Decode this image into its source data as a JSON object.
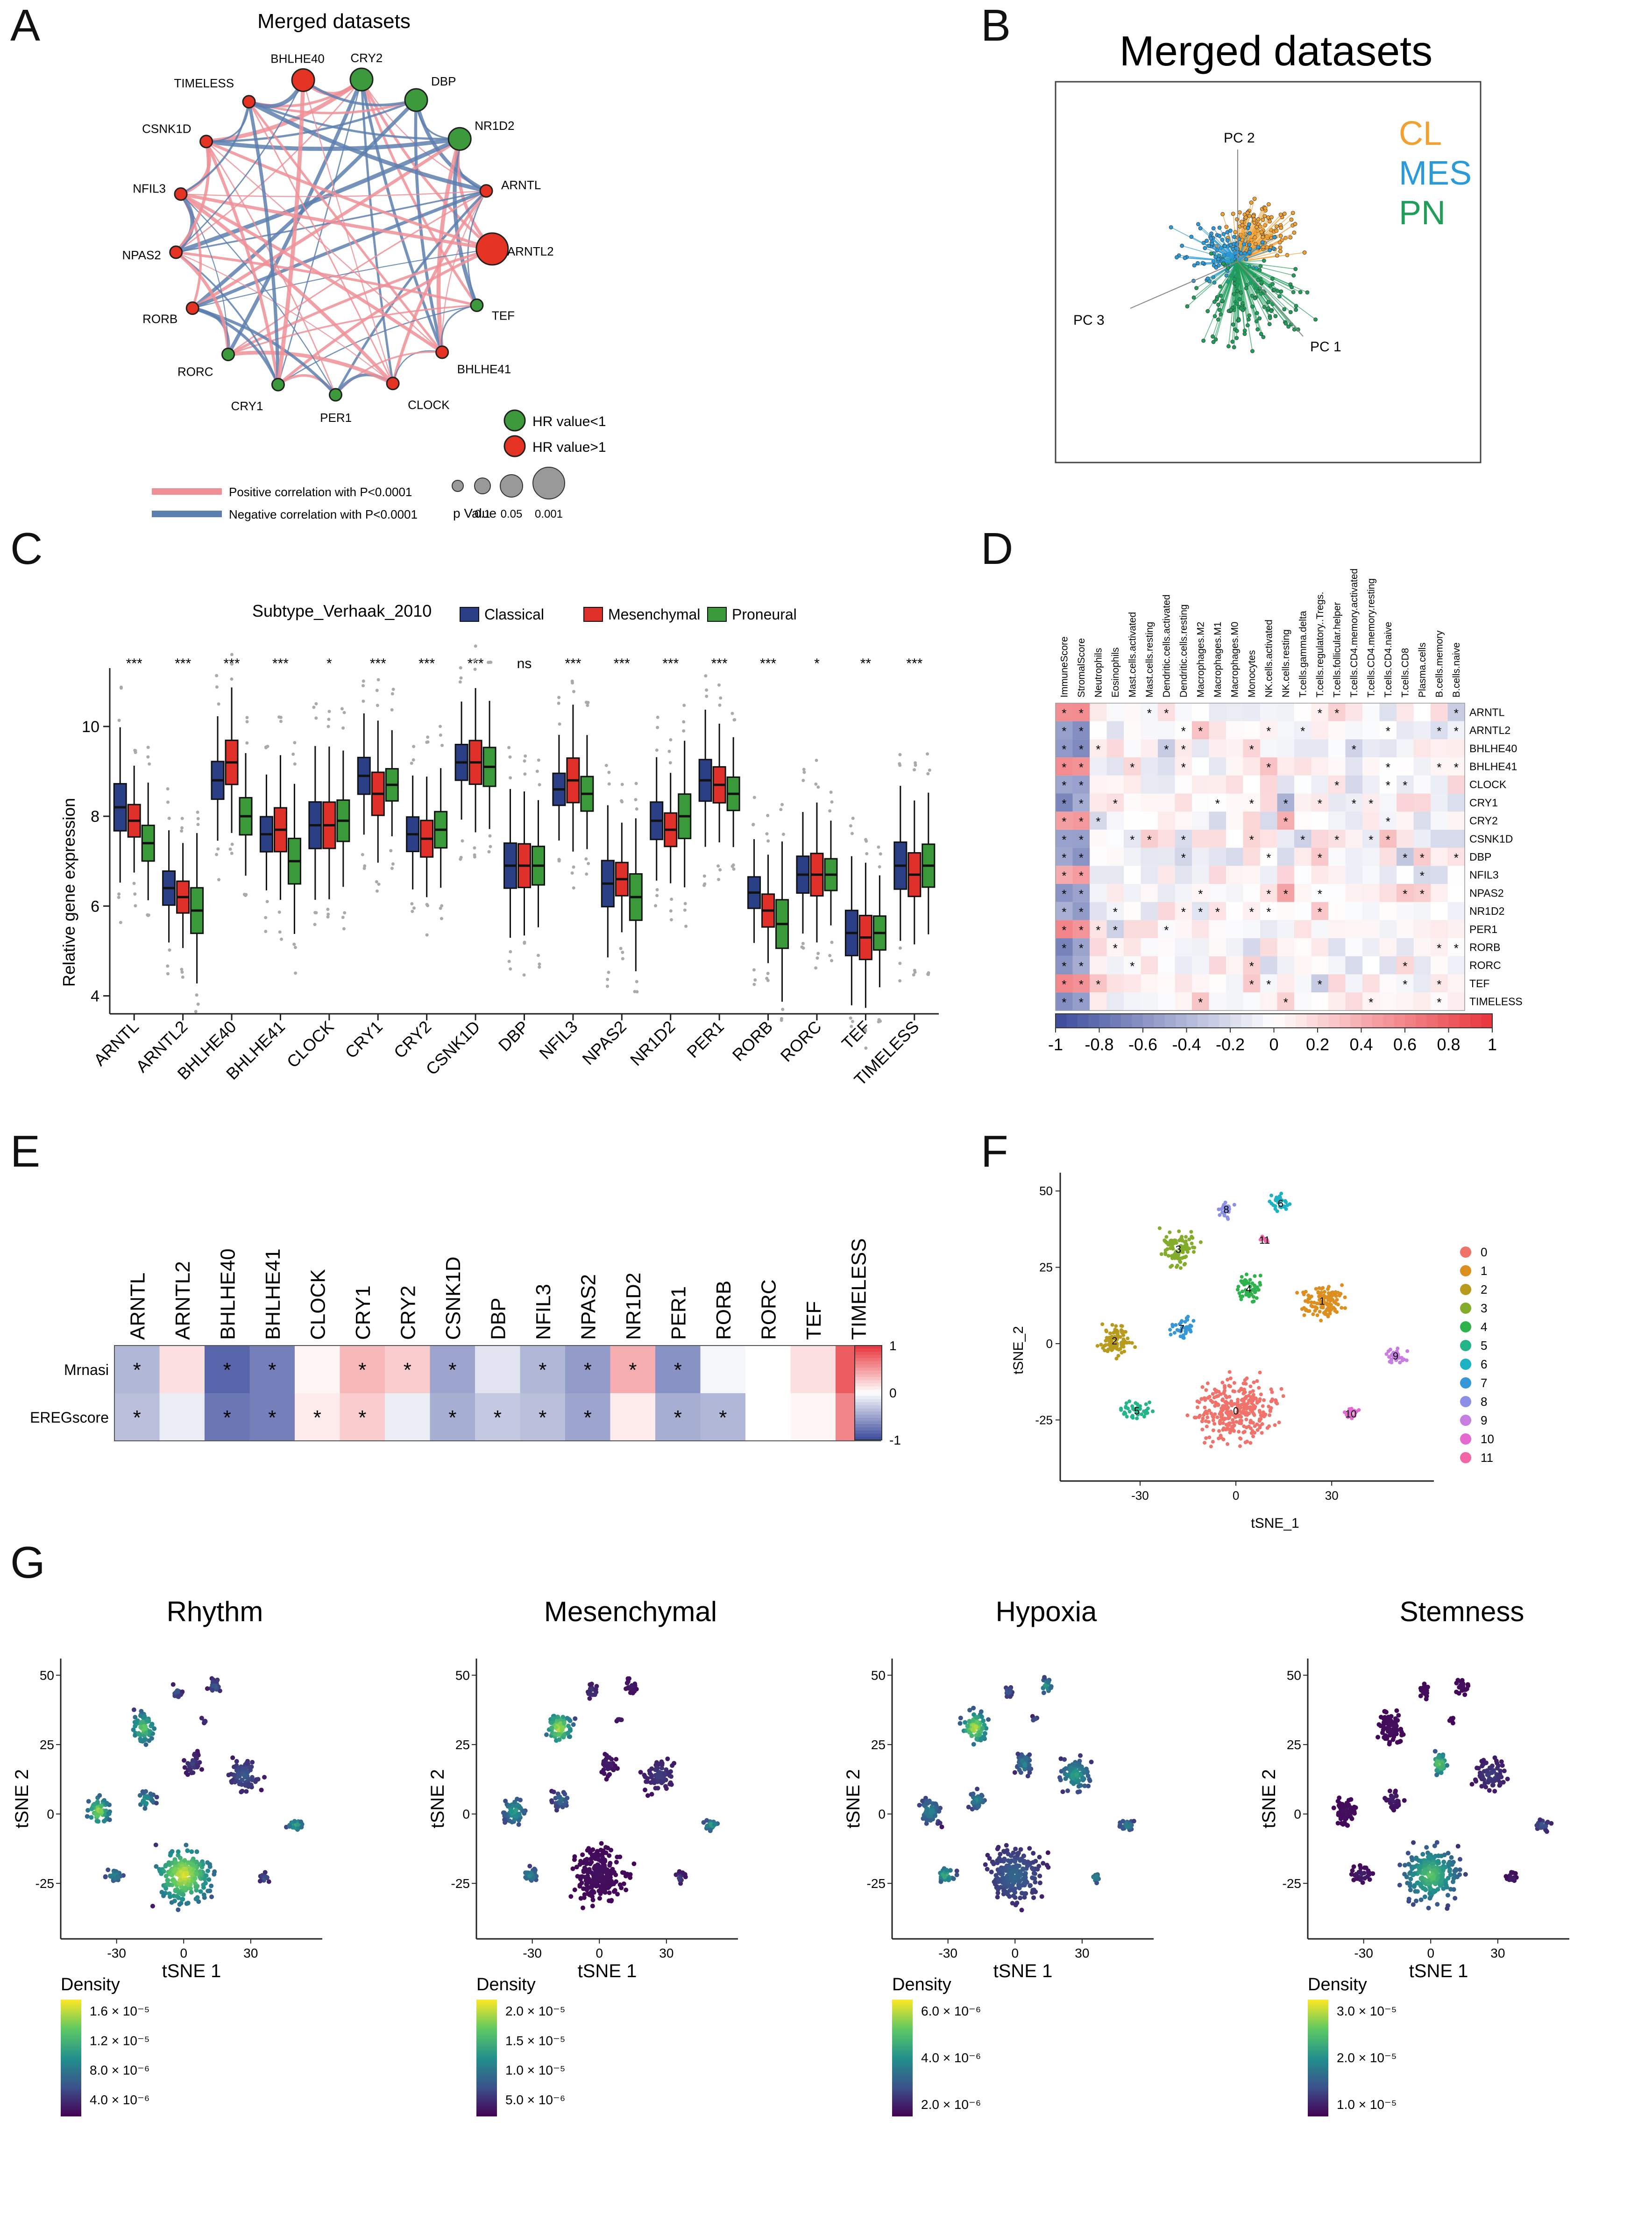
{
  "panel_letters": [
    "A",
    "B",
    "C",
    "D",
    "E",
    "F",
    "G"
  ],
  "colors": {
    "blue": "#2b3f86",
    "red": "#e0302a",
    "green": "#3a9a3a",
    "pos": "#ef8f96",
    "neg": "#5d7faf",
    "hr_low": "#3c9a3c",
    "hr_high": "#e53323",
    "cl": "#f2a030",
    "mes": "#2a9ad8",
    "pn": "#1f9e5a"
  },
  "genes": [
    "ARNTL",
    "ARNTL2",
    "BHLHE40",
    "BHLHE41",
    "CLOCK",
    "CRY1",
    "CRY2",
    "CSNK1D",
    "DBP",
    "NFIL3",
    "NPAS2",
    "NR1D2",
    "PER1",
    "RORB",
    "RORC",
    "TEF",
    "TIMELESS"
  ],
  "chart_data": [
    {
      "id": "A",
      "type": "network",
      "title": "Merged datasets",
      "nodes": [
        {
          "name": "CRY2",
          "hr": "<1",
          "p": 0.01
        },
        {
          "name": "DBP",
          "hr": "<1",
          "p": 0.01
        },
        {
          "name": "NR1D2",
          "hr": "<1",
          "p": 0.01
        },
        {
          "name": "ARNTL",
          "hr": ">1",
          "p": 0.1
        },
        {
          "name": "ARNTL2",
          "hr": ">1",
          "p": 0.001
        },
        {
          "name": "TEF",
          "hr": "<1",
          "p": 0.1
        },
        {
          "name": "BHLHE41",
          "hr": ">1",
          "p": 0.1
        },
        {
          "name": "CLOCK",
          "hr": ">1",
          "p": 0.1
        },
        {
          "name": "PER1",
          "hr": "<1",
          "p": 0.1
        },
        {
          "name": "CRY1",
          "hr": "<1",
          "p": 0.1
        },
        {
          "name": "RORC",
          "hr": "<1",
          "p": 0.1
        },
        {
          "name": "RORB",
          "hr": ">1",
          "p": 0.1
        },
        {
          "name": "NPAS2",
          "hr": ">1",
          "p": 0.1
        },
        {
          "name": "NFIL3",
          "hr": ">1",
          "p": 0.1
        },
        {
          "name": "CSNK1D",
          "hr": ">1",
          "p": 0.1
        },
        {
          "name": "TIMELESS",
          "hr": ">1",
          "p": 0.1
        },
        {
          "name": "BHLHE40",
          "hr": ">1",
          "p": 0.01
        }
      ],
      "legend": {
        "hr_low": "HR value<1",
        "hr_high": "HR value>1",
        "pos": "Positive correlation with P<0.0001",
        "neg": "Negative correlation with P<0.0001",
        "p_title": "p Value",
        "p_values": [
          "0.1",
          "0.05",
          "0.001"
        ]
      }
    },
    {
      "id": "B",
      "type": "scatter",
      "title": "Merged datasets",
      "axes": [
        "PC 1",
        "PC 2",
        "PC 3"
      ],
      "legend": [
        "CL",
        "MES",
        "PN"
      ]
    },
    {
      "id": "C",
      "type": "box",
      "legend_title": "Subtype_Verhaak_2010",
      "groups": [
        "Classical",
        "Mesenchymal",
        "Proneural"
      ],
      "ylabel": "Relative gene expression",
      "ylim": [
        3.6,
        11.3
      ],
      "yticks": [
        4,
        6,
        8,
        10
      ],
      "categories": [
        "ARNTL",
        "ARNTL2",
        "BHLHE40",
        "BHLHE41",
        "CLOCK",
        "CRY1",
        "CRY2",
        "CSNK1D",
        "DBP",
        "NFIL3",
        "NPAS2",
        "NR1D2",
        "PER1",
        "RORB",
        "RORC",
        "TEF",
        "TIMELESS"
      ],
      "significance": [
        "***",
        "***",
        "***",
        "***",
        "*",
        "***",
        "***",
        "***",
        "ns",
        "***",
        "***",
        "***",
        "***",
        "***",
        "*",
        "**",
        "***"
      ],
      "medians": [
        [
          8.2,
          7.9,
          7.4
        ],
        [
          6.4,
          6.2,
          5.9
        ],
        [
          8.8,
          9.2,
          8.0
        ],
        [
          7.6,
          7.7,
          7.0
        ],
        [
          7.8,
          7.8,
          7.9
        ],
        [
          8.9,
          8.5,
          8.7
        ],
        [
          7.6,
          7.5,
          7.7
        ],
        [
          9.2,
          9.2,
          9.1
        ],
        [
          6.9,
          6.9,
          6.9
        ],
        [
          8.6,
          8.8,
          8.5
        ],
        [
          6.5,
          6.6,
          6.2
        ],
        [
          7.9,
          7.7,
          8.0
        ],
        [
          8.8,
          8.7,
          8.5
        ],
        [
          6.3,
          5.9,
          5.6
        ],
        [
          6.7,
          6.7,
          6.7
        ],
        [
          5.4,
          5.3,
          5.4
        ],
        [
          6.9,
          6.7,
          6.9
        ]
      ]
    },
    {
      "id": "D",
      "type": "heatmap",
      "columns": [
        "ImmuneScore",
        "StromalScore",
        "Neutrophils",
        "Eosinophils",
        "Mast.cells.activated",
        "Mast.cells.resting",
        "Dendritic.cells.activated",
        "Dendritic.cells.resting",
        "Macrophages.M2",
        "Macrophages.M1",
        "Macrophages.M0",
        "Monocytes",
        "NK.cells.activated",
        "NK.cells.resting",
        "T.cells.gamma.delta",
        "T.cells.regulatory..Tregs.",
        "T.cells.follicular.helper",
        "T.cells.CD4.memory.activated",
        "T.cells.CD4.memory.resting",
        "T.cells.CD4.naive",
        "T.cells.CD8",
        "Plasma.cells",
        "B.cells.memory",
        "B.cells.naive"
      ],
      "rows": [
        "ARNTL",
        "ARNTL2",
        "BHLHE40",
        "BHLHE41",
        "CLOCK",
        "CRY1",
        "CRY2",
        "CSNK1D",
        "DBP",
        "NFIL3",
        "NPAS2",
        "NR1D2",
        "PER1",
        "RORB",
        "RORC",
        "TEF",
        "TIMELESS"
      ],
      "scale_ticks": [
        "-1",
        "-0.8",
        "-0.6",
        "-0.4",
        "-0.2",
        "0",
        "0.2",
        "0.4",
        "0.6",
        "0.8",
        "1"
      ],
      "range": [
        -1,
        1
      ]
    },
    {
      "id": "E",
      "type": "heatmap",
      "columns": [
        "ARNTL",
        "ARNTL2",
        "BHLHE40",
        "BHLHE41",
        "CLOCK",
        "CRY1",
        "CRY2",
        "CSNK1D",
        "DBP",
        "NFIL3",
        "NPAS2",
        "NR1D2",
        "PER1",
        "RORB",
        "RORC",
        "TEF",
        "TIMELESS"
      ],
      "rows": [
        "Mrnasi",
        "EREGscore"
      ],
      "values": [
        [
          -0.4,
          0.15,
          -0.85,
          -0.7,
          0.05,
          0.35,
          0.25,
          -0.5,
          -0.15,
          -0.4,
          -0.55,
          0.4,
          -0.6,
          -0.05,
          0.0,
          0.15,
          0.8
        ],
        [
          -0.35,
          -0.1,
          -0.75,
          -0.7,
          0.1,
          0.25,
          -0.1,
          -0.45,
          -0.3,
          -0.35,
          -0.5,
          0.1,
          -0.45,
          -0.4,
          0.0,
          0.05,
          0.6
        ]
      ],
      "stars": [
        [
          1,
          0,
          1,
          1,
          0,
          1,
          1,
          1,
          0,
          1,
          1,
          1,
          1,
          0,
          0,
          0,
          1
        ],
        [
          1,
          0,
          1,
          1,
          1,
          1,
          0,
          1,
          1,
          1,
          1,
          0,
          1,
          1,
          0,
          0,
          1
        ]
      ],
      "scale_ticks": [
        "1",
        "0",
        "-1"
      ],
      "range": [
        -1,
        1
      ]
    },
    {
      "id": "F",
      "type": "scatter",
      "xlabel": "tSNE_1",
      "ylabel": "tSNE_2",
      "xticks": [
        -30,
        0,
        30
      ],
      "yticks": [
        -25,
        0,
        25,
        50
      ],
      "clusters": [
        "0",
        "1",
        "2",
        "3",
        "4",
        "5",
        "6",
        "7",
        "8",
        "9",
        "10",
        "11"
      ],
      "cluster_colors": [
        "#f0736b",
        "#dc8f1e",
        "#b89b1d",
        "#83ac2a",
        "#2eb34c",
        "#23b487",
        "#1cb2c4",
        "#3596d8",
        "#8b8fe6",
        "#c87de0",
        "#e56ad0",
        "#f066a6"
      ],
      "cluster_centers": [
        [
          0,
          -22
        ],
        [
          27,
          14
        ],
        [
          -38,
          1
        ],
        [
          -18,
          31
        ],
        [
          4,
          18
        ],
        [
          -31,
          -22
        ],
        [
          14,
          46
        ],
        [
          -17,
          5
        ],
        [
          -3,
          44
        ],
        [
          50,
          -4
        ],
        [
          36,
          -23
        ],
        [
          9,
          34
        ]
      ]
    },
    {
      "id": "G",
      "type": "density",
      "panels": [
        {
          "title": "Rhythm",
          "ticks": [
            "1.6 × 10⁻⁵",
            "1.2 × 10⁻⁵",
            "8.0 × 10⁻⁶",
            "4.0 × 10⁻⁶"
          ]
        },
        {
          "title": "Mesenchymal",
          "ticks": [
            "2.0 × 10⁻⁵",
            "1.5 × 10⁻⁵",
            "1.0 × 10⁻⁵",
            "5.0 × 10⁻⁶"
          ]
        },
        {
          "title": "Hypoxia",
          "ticks": [
            "6.0 × 10⁻⁶",
            "4.0 × 10⁻⁶",
            "2.0 × 10⁻⁶"
          ]
        },
        {
          "title": "Stemness",
          "ticks": [
            "3.0 × 10⁻⁵",
            "2.0 × 10⁻⁵",
            "1.0 × 10⁻⁵"
          ]
        }
      ],
      "xlabel": "tSNE 1",
      "ylabel": "tSNE 2",
      "xticks": [
        -30,
        0,
        30
      ],
      "yticks": [
        -25,
        0,
        25,
        50
      ],
      "legend_title": "Density"
    }
  ]
}
